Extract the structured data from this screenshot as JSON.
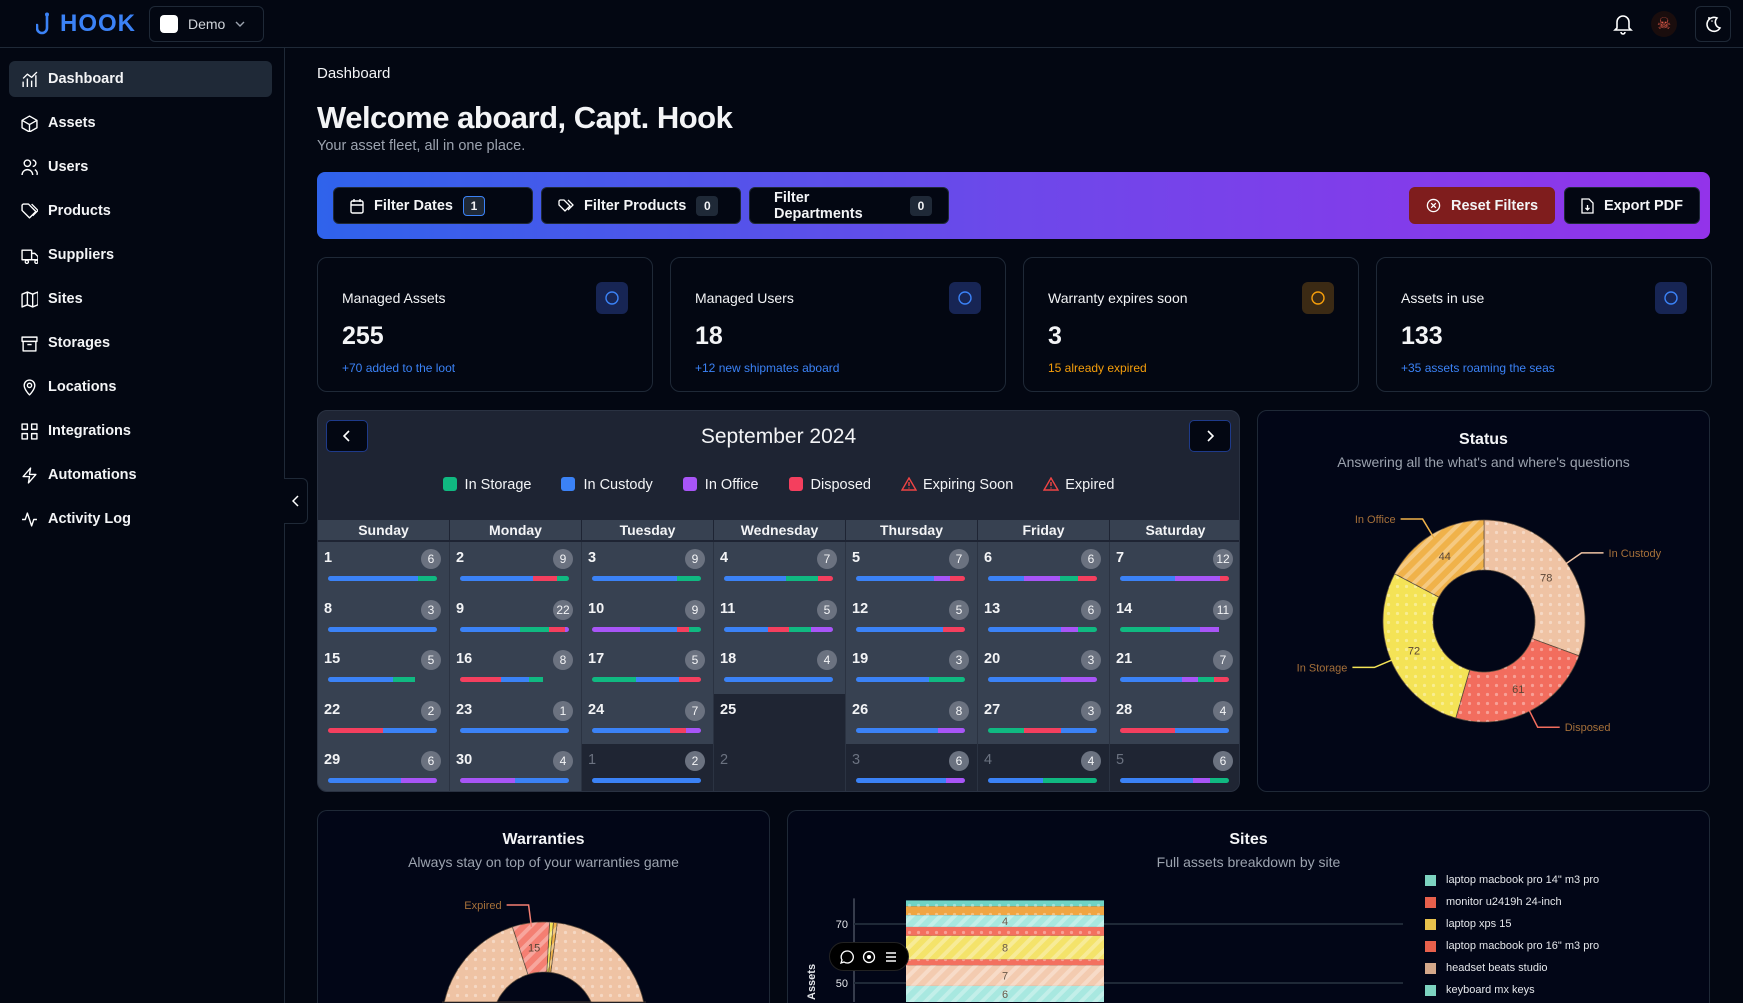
{
  "app": {
    "name": "HOOK",
    "org": "Demo"
  },
  "colors": {
    "in_storage": "#10b981",
    "in_custody": "#3b82f6",
    "in_office": "#a855f7",
    "disposed": "#f43f5e",
    "warning": "#ef4444"
  },
  "sidebar": {
    "items": [
      {
        "label": "Dashboard",
        "icon": "chart-icon",
        "active": true
      },
      {
        "label": "Assets",
        "icon": "box-icon"
      },
      {
        "label": "Users",
        "icon": "users-icon"
      },
      {
        "label": "Products",
        "icon": "tags-icon"
      },
      {
        "label": "Suppliers",
        "icon": "truck-icon"
      },
      {
        "label": "Sites",
        "icon": "map-icon"
      },
      {
        "label": "Storages",
        "icon": "archive-icon"
      },
      {
        "label": "Locations",
        "icon": "pin-icon"
      },
      {
        "label": "Integrations",
        "icon": "grid-icon"
      },
      {
        "label": "Automations",
        "icon": "bolt-icon"
      },
      {
        "label": "Activity Log",
        "icon": "activity-icon"
      }
    ]
  },
  "header": {
    "breadcrumb": "Dashboard",
    "title": "Welcome aboard, Capt. Hook",
    "subtitle": "Your asset fleet, all in one place."
  },
  "filters": {
    "dates": {
      "label": "Filter Dates",
      "count": "1"
    },
    "products": {
      "label": "Filter Products",
      "count": "0"
    },
    "departments": {
      "label": "Filter Departments",
      "count": "0"
    },
    "reset": "Reset Filters",
    "export": "Export PDF"
  },
  "stats": [
    {
      "label": "Managed Assets",
      "value": "255",
      "note": "+70 added to the loot",
      "icon": "cube-icon",
      "tone": "blue"
    },
    {
      "label": "Managed Users",
      "value": "18",
      "note": "+12 new shipmates aboard",
      "icon": "users-icon",
      "tone": "blue"
    },
    {
      "label": "Warranty expires soon",
      "value": "3",
      "note": "15 already expired",
      "icon": "calendar-clock-icon",
      "tone": "amber"
    },
    {
      "label": "Assets in use",
      "value": "133",
      "note": "+35 assets roaming the seas",
      "icon": "user-check-icon",
      "tone": "blue"
    }
  ],
  "calendar": {
    "month": "September 2024",
    "legend": [
      {
        "label": "In Storage",
        "key": "s"
      },
      {
        "label": "In Custody",
        "key": "c"
      },
      {
        "label": "In Office",
        "key": "o"
      },
      {
        "label": "Disposed",
        "key": "d"
      },
      {
        "label": "Expiring Soon",
        "key": "warn"
      },
      {
        "label": "Expired",
        "key": "warn"
      }
    ],
    "weekdays": [
      "Sunday",
      "Monday",
      "Tuesday",
      "Wednesday",
      "Thursday",
      "Friday",
      "Saturday"
    ],
    "days": [
      {
        "d": "1",
        "n": "6",
        "seg": [
          [
            "c",
            0.83
          ],
          [
            "s",
            0.17
          ]
        ]
      },
      {
        "d": "2",
        "n": "9",
        "seg": [
          [
            "c",
            0.67
          ],
          [
            "d",
            0.22
          ],
          [
            "s",
            0.11
          ]
        ]
      },
      {
        "d": "3",
        "n": "9",
        "seg": [
          [
            "c",
            0.78
          ],
          [
            "s",
            0.22
          ]
        ]
      },
      {
        "d": "4",
        "n": "7",
        "seg": [
          [
            "c",
            0.57
          ],
          [
            "s",
            0.29
          ],
          [
            "d",
            0.14
          ]
        ]
      },
      {
        "d": "5",
        "n": "7",
        "seg": [
          [
            "c",
            0.72
          ],
          [
            "o",
            0.14
          ],
          [
            "d",
            0.14
          ]
        ]
      },
      {
        "d": "6",
        "n": "6",
        "seg": [
          [
            "c",
            0.33
          ],
          [
            "o",
            0.33
          ],
          [
            "s",
            0.17
          ],
          [
            "d",
            0.17
          ]
        ]
      },
      {
        "d": "7",
        "n": "12",
        "seg": [
          [
            "c",
            0.5
          ],
          [
            "o",
            0.42
          ],
          [
            "d",
            0.08
          ]
        ]
      },
      {
        "d": "8",
        "n": "3",
        "seg": [
          [
            "c",
            1
          ]
        ]
      },
      {
        "d": "9",
        "n": "22",
        "seg": [
          [
            "c",
            0.55
          ],
          [
            "s",
            0.27
          ],
          [
            "d",
            0.14
          ],
          [
            "o",
            0.04
          ]
        ]
      },
      {
        "d": "10",
        "n": "9",
        "seg": [
          [
            "o",
            0.44
          ],
          [
            "c",
            0.34
          ],
          [
            "d",
            0.11
          ],
          [
            "s",
            0.11
          ]
        ]
      },
      {
        "d": "11",
        "n": "5",
        "seg": [
          [
            "c",
            0.4
          ],
          [
            "d",
            0.2
          ],
          [
            "s",
            0.2
          ],
          [
            "o",
            0.2
          ]
        ]
      },
      {
        "d": "12",
        "n": "5",
        "seg": [
          [
            "c",
            0.8
          ],
          [
            "d",
            0.2
          ]
        ]
      },
      {
        "d": "13",
        "n": "6",
        "seg": [
          [
            "c",
            0.67
          ],
          [
            "o",
            0.16
          ],
          [
            "s",
            0.17
          ]
        ]
      },
      {
        "d": "14",
        "n": "11",
        "seg": [
          [
            "s",
            0.46
          ],
          [
            "c",
            0.27
          ],
          [
            "o",
            0.18
          ]
        ]
      },
      {
        "d": "15",
        "n": "5",
        "seg": [
          [
            "c",
            0.6
          ],
          [
            "s",
            0.2
          ]
        ]
      },
      {
        "d": "16",
        "n": "8",
        "seg": [
          [
            "d",
            0.38
          ],
          [
            "c",
            0.25
          ],
          [
            "s",
            0.13
          ]
        ]
      },
      {
        "d": "17",
        "n": "5",
        "seg": [
          [
            "s",
            0.4
          ],
          [
            "c",
            0.4
          ],
          [
            "d",
            0.2
          ]
        ]
      },
      {
        "d": "18",
        "n": "4",
        "seg": [
          [
            "c",
            1
          ]
        ]
      },
      {
        "d": "19",
        "n": "3",
        "seg": [
          [
            "c",
            0.67
          ],
          [
            "s",
            0.33
          ]
        ]
      },
      {
        "d": "20",
        "n": "3",
        "seg": [
          [
            "c",
            0.67
          ],
          [
            "o",
            0.33
          ]
        ]
      },
      {
        "d": "21",
        "n": "7",
        "seg": [
          [
            "c",
            0.57
          ],
          [
            "o",
            0.15
          ],
          [
            "s",
            0.14
          ],
          [
            "d",
            0.14
          ]
        ]
      },
      {
        "d": "22",
        "n": "2",
        "seg": [
          [
            "d",
            0.5
          ],
          [
            "c",
            0.5
          ]
        ]
      },
      {
        "d": "23",
        "n": "1",
        "seg": [
          [
            "c",
            1
          ]
        ]
      },
      {
        "d": "24",
        "n": "7",
        "seg": [
          [
            "c",
            0.72
          ],
          [
            "d",
            0.14
          ],
          [
            "o",
            0.14
          ]
        ]
      },
      {
        "d": "25",
        "n": "",
        "seg": [],
        "today": true
      },
      {
        "d": "26",
        "n": "8",
        "seg": [
          [
            "c",
            0.75
          ],
          [
            "o",
            0.25
          ]
        ]
      },
      {
        "d": "27",
        "n": "3",
        "seg": [
          [
            "s",
            0.33
          ],
          [
            "d",
            0.34
          ],
          [
            "c",
            0.33
          ]
        ]
      },
      {
        "d": "28",
        "n": "4",
        "seg": [
          [
            "d",
            0.5
          ],
          [
            "c",
            0.5
          ]
        ]
      },
      {
        "d": "29",
        "n": "6",
        "seg": [
          [
            "c",
            0.67
          ],
          [
            "o",
            0.33
          ]
        ]
      },
      {
        "d": "30",
        "n": "4",
        "seg": [
          [
            "o",
            0.5
          ],
          [
            "c",
            0.5
          ]
        ]
      },
      {
        "d": "1",
        "n": "2",
        "seg": [
          [
            "c",
            1
          ]
        ],
        "other": true
      },
      {
        "d": "2",
        "n": "",
        "seg": [],
        "other": true
      },
      {
        "d": "3",
        "n": "6",
        "seg": [
          [
            "c",
            0.83
          ],
          [
            "o",
            0.17
          ]
        ],
        "other": true
      },
      {
        "d": "4",
        "n": "4",
        "seg": [
          [
            "c",
            0.5
          ],
          [
            "s",
            0.5
          ]
        ],
        "other": true
      },
      {
        "d": "5",
        "n": "6",
        "seg": [
          [
            "c",
            0.67
          ],
          [
            "o",
            0.16
          ],
          [
            "s",
            0.17
          ]
        ],
        "other": true
      }
    ]
  },
  "chart_data": [
    {
      "type": "pie",
      "title": "Status",
      "subtitle": "Answering all the what's and where's questions",
      "donut": true,
      "slices": [
        {
          "label": "In Custody",
          "value": 78,
          "color": "#efc3a4",
          "pattern": "dots"
        },
        {
          "label": "Disposed",
          "value": 61,
          "color": "#f26d5e",
          "pattern": "dots"
        },
        {
          "label": "In Storage",
          "value": 72,
          "color": "#f4e356",
          "pattern": "dots"
        },
        {
          "label": "In Office",
          "value": 44,
          "color": "#f0b24a",
          "pattern": "stripes"
        }
      ]
    },
    {
      "type": "pie",
      "title": "Warranties",
      "subtitle": "Always stay on top of your warranties game",
      "donut": true,
      "slices": [
        {
          "label": "",
          "value": 237,
          "color": "#efc3a4",
          "pattern": "dots"
        },
        {
          "label": "Expired",
          "value": 15,
          "color": "#f47f72",
          "pattern": "stripes"
        },
        {
          "label": "",
          "value": 1.5,
          "color": "#f4e356",
          "pattern": "stripes"
        },
        {
          "label": "",
          "value": 1.5,
          "color": "#f0b24a",
          "pattern": "stripes"
        }
      ]
    },
    {
      "type": "bar",
      "stacked": true,
      "title": "Sites",
      "subtitle": "Full assets breakdown by site",
      "ylabel": "Assets",
      "yticks": [
        50,
        70
      ],
      "bar_total": 78,
      "segments_top_down": [
        {
          "value": 2,
          "color": "#6fd3c4",
          "pattern": "dots",
          "label": ""
        },
        {
          "value": 3,
          "color": "#f0a542",
          "pattern": "dots",
          "label": ""
        },
        {
          "value": 4,
          "color": "#a8e8e0",
          "pattern": "stripes",
          "label": "4"
        },
        {
          "value": 3,
          "color": "#f3705f",
          "pattern": "dots",
          "label": ""
        },
        {
          "value": 8,
          "color": "#f4e36a",
          "pattern": "stripes",
          "label": "8"
        },
        {
          "value": 2,
          "color": "#f3705f",
          "pattern": "dots",
          "label": ""
        },
        {
          "value": 7,
          "color": "#f3cbb0",
          "pattern": "stripes",
          "label": "7"
        },
        {
          "value": 6,
          "color": "#a8e8e0",
          "pattern": "stripes",
          "label": "6"
        }
      ],
      "legend": [
        {
          "label": "laptop macbook pro 14\" m3 pro",
          "color": "#7dd3c0"
        },
        {
          "label": "monitor u2419h 24-inch",
          "color": "#e8604c"
        },
        {
          "label": "laptop xps 15",
          "color": "#e8c14c"
        },
        {
          "label": "laptop macbook pro 16\" m3 pro",
          "color": "#e8604c"
        },
        {
          "label": "headset beats studio",
          "color": "#d4a88a"
        },
        {
          "label": "keyboard mx keys",
          "color": "#7dd3c0"
        }
      ]
    }
  ]
}
